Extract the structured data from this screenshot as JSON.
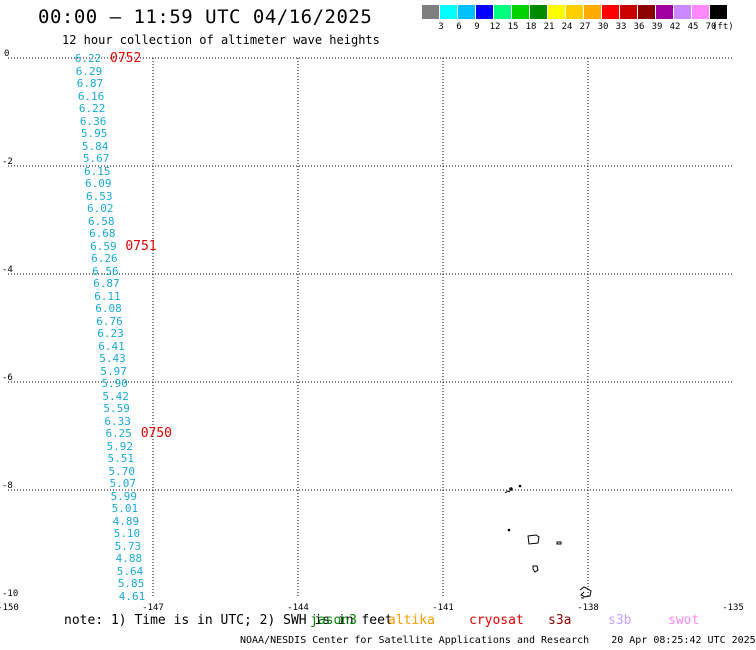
{
  "header": {
    "title": "00:00 – 11:59 UTC 04/16/2025",
    "subtitle": "12 hour collection of altimeter wave heights"
  },
  "legend": {
    "unit": "(ft)",
    "items": [
      {
        "color": "#7f7f7f",
        "label": ""
      },
      {
        "color": "#00ffff",
        "label": "3"
      },
      {
        "color": "#00c0ff",
        "label": "6"
      },
      {
        "color": "#0000ff",
        "label": "9"
      },
      {
        "color": "#00ff7f",
        "label": "12"
      },
      {
        "color": "#00d200",
        "label": "15"
      },
      {
        "color": "#008a00",
        "label": "18"
      },
      {
        "color": "#ffff00",
        "label": "21"
      },
      {
        "color": "#ffd000",
        "label": "24"
      },
      {
        "color": "#ffaa00",
        "label": "27"
      },
      {
        "color": "#ff0000",
        "label": "30"
      },
      {
        "color": "#c80000",
        "label": "33"
      },
      {
        "color": "#8c0000",
        "label": "36"
      },
      {
        "color": "#a000a0",
        "label": "39"
      },
      {
        "color": "#cc88ff",
        "label": "42"
      },
      {
        "color": "#ff88ff",
        "label": "45"
      },
      {
        "color": "#000000",
        "label": "70"
      }
    ]
  },
  "map": {
    "lon_ticks": [
      "-150",
      "-147",
      "-144",
      "-141",
      "-138",
      "-135"
    ],
    "lat_ticks": [
      "0",
      "-2",
      "-4",
      "-6",
      "-8",
      "-10"
    ],
    "lon_range": [
      -150,
      -135
    ],
    "lat_range": [
      -10,
      0
    ],
    "grid": "dotted",
    "swh_values": [
      "6.22",
      "6.29",
      "6.87",
      "6.16",
      "6.22",
      "6.36",
      "5.95",
      "5.84",
      "5.67",
      "6.15",
      "6.09",
      "6.53",
      "6.02",
      "6.58",
      "6.68",
      "6.59",
      "6.26",
      "6.56",
      "6.87",
      "6.11",
      "6.08",
      "6.76",
      "6.23",
      "6.41",
      "5.43",
      "5.97",
      "5.90",
      "5.42",
      "5.59",
      "6.33",
      "6.25",
      "5.92",
      "5.51",
      "5.70",
      "5.07",
      "5.99",
      "5.01",
      "4.89",
      "5.10",
      "5.73",
      "4.88",
      "5.64",
      "5.85",
      "4.61"
    ],
    "pass_times": [
      {
        "label": "0752",
        "index": 0
      },
      {
        "label": "0751",
        "index": 15
      },
      {
        "label": "0750",
        "index": 30
      }
    ]
  },
  "footer": {
    "note": "note:  1) Time is in UTC; 2) SWH is in feet",
    "satellites": [
      {
        "name": "jason3",
        "color": "#008000"
      },
      {
        "name": "altika",
        "color": "#ff9900"
      },
      {
        "name": "cryosat",
        "color": "#e00000"
      },
      {
        "name": "s3a",
        "color": "#8b0000"
      },
      {
        "name": "s3b",
        "color": "#c8a0ff"
      },
      {
        "name": "swot",
        "color": "#ff88ff"
      }
    ],
    "credit": "NOAA/NESDIS Center for Satellite Applications and Research",
    "timestamp": "20 Apr 08:25:42 UTC 2025"
  }
}
